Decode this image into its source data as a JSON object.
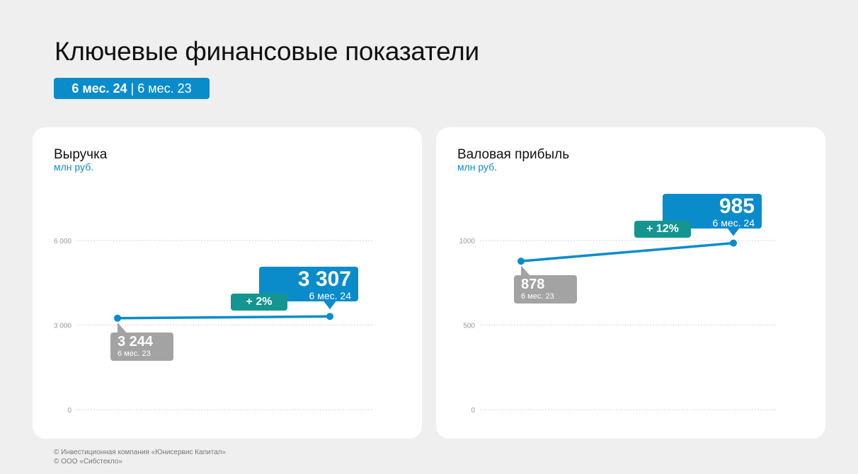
{
  "title": "Ключевые финансовые показатели",
  "period": {
    "current": "6 мес. 24",
    "separator": " | ",
    "previous": "6 мес. 23"
  },
  "colors": {
    "accent": "#0a8ccb",
    "prev": "#a3a3a3",
    "change": "#14958f"
  },
  "chart_data": [
    {
      "type": "line",
      "title": "Выручка",
      "ylabel": "млн руб.",
      "ylim": [
        0,
        6000
      ],
      "yticks": [
        0,
        3000,
        6000
      ],
      "ytick_labels": [
        "0",
        "3 000",
        "6 000"
      ],
      "grid": true,
      "points": [
        {
          "label": "6 мес. 23",
          "value": 3244,
          "value_label": "3 244"
        },
        {
          "label": "6 мес. 24",
          "value": 3307,
          "value_label": "3 307"
        }
      ],
      "change": "+ 2%"
    },
    {
      "type": "line",
      "title": "Валовая прибыль",
      "ylabel": "млн руб.",
      "ylim": [
        0,
        1200
      ],
      "yticks": [
        0,
        500,
        1000
      ],
      "ytick_labels": [
        "0",
        "500",
        "1000"
      ],
      "grid": true,
      "points": [
        {
          "label": "6 мес. 23",
          "value": 878,
          "value_label": "878"
        },
        {
          "label": "6 мес. 24",
          "value": 985,
          "value_label": "985"
        }
      ],
      "change": "+ 12%"
    }
  ],
  "footer": [
    "© Инвестиционная компания «Юнисервис Капитал»",
    "© ООО «Сибстекло»"
  ]
}
